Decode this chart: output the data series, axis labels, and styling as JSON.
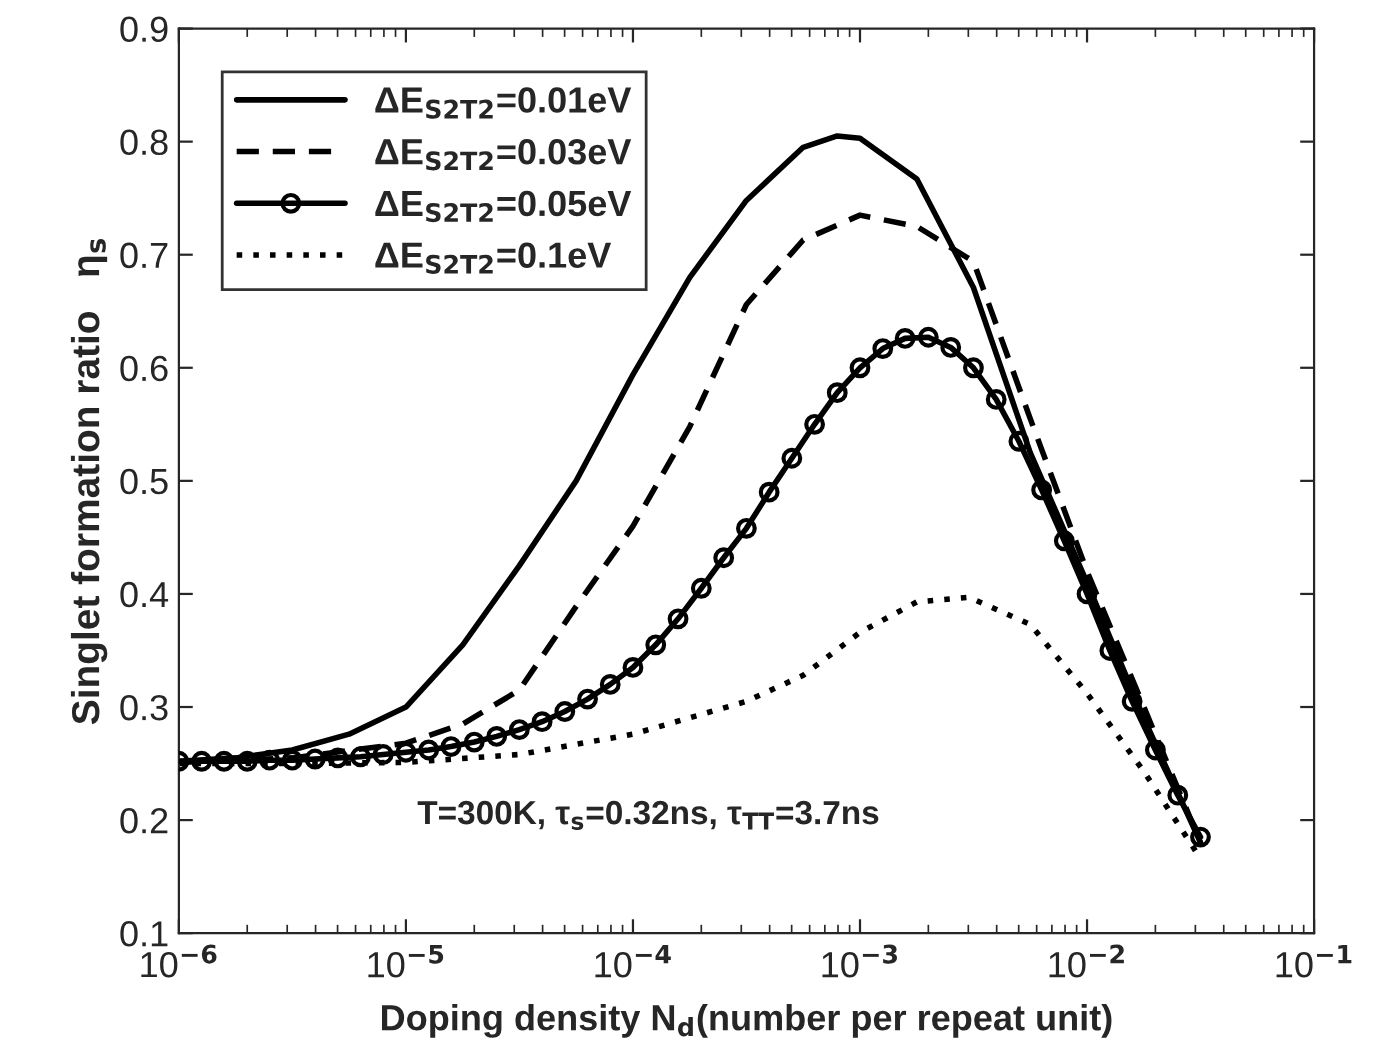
{
  "chart_data": {
    "type": "line",
    "xlabel": "Doping density N$_{d}$(number per repeat unit)",
    "ylabel": "Singlet formation ratio   η$_{s}$",
    "log": "x",
    "xlim": [
      1e-06,
      0.1
    ],
    "ylim": [
      0.1,
      0.9
    ],
    "xticks": [
      {
        "value": 1e-06,
        "label": "10$^{−6}$"
      },
      {
        "value": 1e-05,
        "label": "10$^{−5}$"
      },
      {
        "value": 0.0001,
        "label": "10$^{−4}$"
      },
      {
        "value": 0.001,
        "label": "10$^{−3}$"
      },
      {
        "value": 0.01,
        "label": "10$^{−2}$"
      },
      {
        "value": 0.1,
        "label": "10$^{−1}$"
      }
    ],
    "yticks": [
      0.1,
      0.2,
      0.3,
      0.4,
      0.5,
      0.6,
      0.7,
      0.8,
      0.9
    ],
    "grid": false,
    "legend": "top left",
    "annotations": [
      "T=300K, τ$_{s}$=0.32ns, τ$_{TT}$=3.7ns"
    ],
    "series": [
      {
        "name": "ΔE$_{S2T2}$=0.01eV",
        "color": "#000000",
        "line_style": "solid",
        "marker": "none",
        "x": [
          1e-06,
          1.78e-06,
          3.16e-06,
          5.62e-06,
          1e-05,
          1.78e-05,
          3.16e-05,
          5.62e-05,
          0.0001,
          0.000178,
          0.000316,
          0.000562,
          0.000794,
          0.001,
          0.00178,
          0.00316,
          0.00562,
          0.01,
          0.0178,
          0.0316
        ],
        "values": [
          0.252,
          0.255,
          0.262,
          0.276,
          0.3,
          0.355,
          0.425,
          0.5,
          0.594,
          0.68,
          0.748,
          0.795,
          0.805,
          0.803,
          0.767,
          0.671,
          0.525,
          0.41,
          0.29,
          0.18
        ]
      },
      {
        "name": "ΔE$_{S2T2}$=0.03eV",
        "color": "#000000",
        "line_style": "dashed",
        "marker": "none",
        "x": [
          1e-06,
          3.16e-06,
          1e-05,
          1.78e-05,
          3.16e-05,
          5.62e-05,
          0.0001,
          0.000178,
          0.000316,
          0.000562,
          0.001,
          0.00178,
          0.00316,
          0.00562,
          0.01,
          0.0178,
          0.0316
        ],
        "values": [
          0.251,
          0.255,
          0.268,
          0.285,
          0.315,
          0.389,
          0.46,
          0.548,
          0.656,
          0.713,
          0.735,
          0.725,
          0.694,
          0.555,
          0.42,
          0.3,
          0.18
        ]
      },
      {
        "name": "ΔE$_{S2T2}$=0.05eV",
        "color": "#000000",
        "line_style": "solid",
        "marker": "circle",
        "x": [
          1e-06,
          1.26e-06,
          1.58e-06,
          2e-06,
          2.51e-06,
          3.16e-06,
          3.98e-06,
          5.01e-06,
          6.31e-06,
          7.94e-06,
          1e-05,
          1.26e-05,
          1.58e-05,
          2e-05,
          2.51e-05,
          3.16e-05,
          3.98e-05,
          5.01e-05,
          6.31e-05,
          7.94e-05,
          0.0001,
          0.000126,
          0.000158,
          0.0002,
          0.000251,
          0.000316,
          0.000398,
          0.000501,
          0.000631,
          0.000794,
          0.001,
          0.00126,
          0.00158,
          0.002,
          0.00251,
          0.00316,
          0.00398,
          0.00501,
          0.00631,
          0.00794,
          0.01,
          0.0126,
          0.0158,
          0.02,
          0.0251,
          0.0316
        ],
        "values": [
          0.252,
          0.252,
          0.252,
          0.252,
          0.253,
          0.253,
          0.254,
          0.255,
          0.256,
          0.258,
          0.26,
          0.262,
          0.265,
          0.269,
          0.274,
          0.28,
          0.287,
          0.296,
          0.307,
          0.32,
          0.335,
          0.355,
          0.378,
          0.405,
          0.432,
          0.458,
          0.49,
          0.52,
          0.55,
          0.578,
          0.6,
          0.617,
          0.626,
          0.627,
          0.618,
          0.6,
          0.572,
          0.535,
          0.492,
          0.447,
          0.4,
          0.35,
          0.305,
          0.262,
          0.222,
          0.185
        ]
      },
      {
        "name": "ΔE$_{S2T2}$=0.1eV",
        "color": "#000000",
        "line_style": "dotted",
        "marker": "none",
        "x": [
          1e-06,
          3.16e-06,
          1e-05,
          3.16e-05,
          0.0001,
          0.000316,
          0.000562,
          0.001,
          0.00178,
          0.00302,
          0.00562,
          0.01,
          0.0178,
          0.0302
        ],
        "values": [
          0.25,
          0.25,
          0.251,
          0.258,
          0.276,
          0.305,
          0.328,
          0.366,
          0.393,
          0.397,
          0.373,
          0.312,
          0.243,
          0.172
        ]
      }
    ]
  }
}
